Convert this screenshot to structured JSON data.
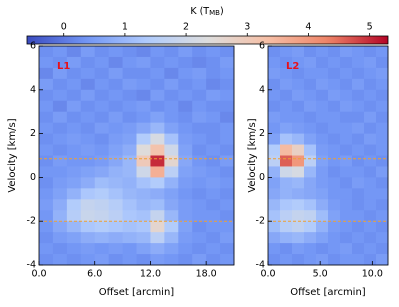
{
  "colorbar": {
    "label_parts": [
      "K (T",
      "MB",
      ")"
    ],
    "clim": [
      -0.6,
      5.3
    ],
    "ticks": [
      0,
      1,
      2,
      3,
      4,
      5
    ],
    "cmap": [
      "#3b4cc0",
      "#7396f5",
      "#b0cbfc",
      "#dddddd",
      "#f6bfa6",
      "#ee8468",
      "#b40426"
    ]
  },
  "chart_data": [
    {
      "type": "heatmap",
      "label": "L1",
      "xlabel": "Offset [arcmin]",
      "ylabel": "Velocity [km/s]",
      "xlim": [
        0,
        21
      ],
      "ylim": [
        -4,
        6
      ],
      "xticks": [
        {
          "value": 0,
          "label": "0.0"
        },
        {
          "value": 6,
          "label": "6.0"
        },
        {
          "value": 12,
          "label": "12.0"
        },
        {
          "value": 18,
          "label": "18.0"
        }
      ],
      "yticks": [
        -4,
        -2,
        0,
        2,
        4,
        6
      ],
      "hlines": [
        0.85,
        -2.0
      ],
      "hline_color": "#f0a030",
      "z": [
        [
          0.3,
          0.4,
          0.2,
          0.5,
          0.3,
          0.4,
          0.3,
          0.2,
          0.4,
          0.3,
          0.5,
          0.3,
          0.4,
          0.3
        ],
        [
          0.4,
          0.3,
          0.5,
          0.3,
          0.4,
          0.2,
          0.4,
          0.5,
          0.3,
          0.4,
          0.3,
          0.2,
          0.3,
          0.5
        ],
        [
          0.2,
          0.5,
          0.3,
          0.4,
          0.3,
          0.5,
          0.3,
          0.3,
          0.4,
          0.2,
          0.4,
          0.5,
          0.3,
          0.4
        ],
        [
          0.5,
          0.3,
          0.4,
          0.2,
          0.4,
          0.3,
          0.5,
          0.4,
          0.3,
          0.5,
          0.3,
          0.4,
          0.2,
          0.3
        ],
        [
          0.3,
          0.4,
          0.3,
          0.5,
          0.3,
          0.4,
          0.3,
          0.2,
          0.5,
          0.3,
          0.4,
          0.3,
          0.5,
          0.4
        ],
        [
          0.4,
          0.2,
          0.5,
          0.3,
          0.4,
          0.3,
          0.4,
          0.5,
          0.3,
          0.4,
          0.2,
          0.4,
          0.3,
          0.3
        ],
        [
          0.3,
          0.5,
          0.3,
          0.4,
          0.3,
          0.5,
          0.3,
          0.4,
          0.6,
          0.4,
          0.3,
          0.5,
          0.4,
          0.2
        ],
        [
          0.4,
          0.3,
          0.4,
          0.3,
          0.5,
          0.4,
          0.5,
          0.7,
          1.0,
          0.6,
          0.4,
          0.3,
          0.3,
          0.4
        ],
        [
          0.3,
          0.4,
          0.5,
          0.4,
          0.3,
          0.5,
          0.6,
          1.4,
          2.2,
          1.2,
          0.5,
          0.4,
          0.3,
          0.4
        ],
        [
          0.4,
          0.3,
          0.4,
          0.5,
          0.4,
          0.6,
          0.8,
          2.4,
          3.2,
          2.0,
          0.6,
          0.3,
          0.4,
          0.3
        ],
        [
          0.3,
          0.5,
          0.4,
          0.4,
          0.5,
          0.7,
          1.0,
          3.0,
          5.0,
          2.6,
          0.7,
          0.4,
          0.3,
          0.5
        ],
        [
          0.4,
          0.4,
          0.5,
          0.6,
          0.7,
          0.9,
          1.0,
          2.0,
          3.6,
          1.6,
          0.6,
          0.5,
          0.4,
          0.3
        ],
        [
          0.3,
          0.5,
          0.6,
          0.8,
          1.1,
          1.0,
          0.9,
          1.2,
          1.4,
          0.9,
          0.5,
          0.4,
          0.5,
          0.4
        ],
        [
          0.4,
          0.6,
          0.9,
          1.3,
          1.4,
          1.2,
          1.0,
          0.9,
          0.8,
          0.6,
          0.4,
          0.3,
          0.4,
          0.3
        ],
        [
          0.5,
          0.8,
          1.4,
          1.8,
          1.7,
          1.5,
          1.2,
          1.0,
          1.1,
          0.7,
          0.5,
          0.4,
          0.3,
          0.4
        ],
        [
          0.4,
          0.9,
          1.5,
          1.9,
          1.8,
          1.6,
          1.3,
          1.2,
          1.8,
          1.0,
          0.5,
          0.4,
          0.4,
          0.3
        ],
        [
          0.4,
          0.7,
          1.0,
          1.3,
          1.4,
          1.3,
          1.2,
          1.3,
          2.6,
          1.4,
          0.6,
          0.3,
          0.4,
          0.4
        ],
        [
          0.3,
          0.5,
          0.6,
          0.8,
          0.9,
          0.8,
          0.9,
          1.0,
          1.6,
          1.0,
          0.5,
          0.4,
          0.3,
          0.5
        ],
        [
          0.4,
          0.3,
          0.4,
          0.5,
          0.4,
          0.5,
          0.4,
          0.6,
          0.8,
          0.6,
          0.4,
          0.3,
          0.4,
          0.3
        ],
        [
          0.3,
          0.4,
          0.3,
          0.4,
          0.5,
          0.3,
          0.4,
          0.3,
          0.5,
          0.4,
          0.3,
          0.5,
          0.3,
          0.4
        ]
      ]
    },
    {
      "type": "heatmap",
      "label": "L2",
      "xlabel": "Offset [arcmin]",
      "ylabel": "Velocity [km/s]",
      "xlim": [
        0,
        11.5
      ],
      "ylim": [
        -4,
        6
      ],
      "xticks": [
        {
          "value": 0,
          "label": "0.0"
        },
        {
          "value": 5,
          "label": "5.0"
        },
        {
          "value": 10,
          "label": "10.0"
        }
      ],
      "yticks": [
        -4,
        -2,
        0,
        2,
        4,
        6
      ],
      "hlines": [
        0.85,
        -2.0
      ],
      "hline_color": "#f0a030",
      "z": [
        [
          0.3,
          0.4,
          0.5,
          0.3,
          0.4,
          0.3,
          0.5,
          0.4,
          0.3,
          0.4
        ],
        [
          0.4,
          0.3,
          0.4,
          0.5,
          0.3,
          0.4,
          0.3,
          0.4,
          0.5,
          0.3
        ],
        [
          0.5,
          0.4,
          0.3,
          0.4,
          0.4,
          0.3,
          0.4,
          0.3,
          0.4,
          0.5
        ],
        [
          0.3,
          0.5,
          0.4,
          0.3,
          0.5,
          0.4,
          0.3,
          0.5,
          0.3,
          0.4
        ],
        [
          0.4,
          0.3,
          0.5,
          0.4,
          0.3,
          0.5,
          0.4,
          0.3,
          0.4,
          0.3
        ],
        [
          0.3,
          0.4,
          0.3,
          0.5,
          0.4,
          0.3,
          0.5,
          0.4,
          0.3,
          0.4
        ],
        [
          0.5,
          0.4,
          0.4,
          0.3,
          0.4,
          0.4,
          0.3,
          0.3,
          0.5,
          0.3
        ],
        [
          0.4,
          0.6,
          0.5,
          0.4,
          0.3,
          0.4,
          0.4,
          0.5,
          0.3,
          0.4
        ],
        [
          0.6,
          1.2,
          1.0,
          0.6,
          0.4,
          0.3,
          0.4,
          0.3,
          0.5,
          0.4
        ],
        [
          1.4,
          3.4,
          2.8,
          1.2,
          0.5,
          0.4,
          0.3,
          0.4,
          0.3,
          0.4
        ],
        [
          1.6,
          4.6,
          4.0,
          1.6,
          0.6,
          0.4,
          0.5,
          0.3,
          0.4,
          0.3
        ],
        [
          0.9,
          2.0,
          2.2,
          1.0,
          0.5,
          0.3,
          0.4,
          0.4,
          0.3,
          0.5
        ],
        [
          0.6,
          0.9,
          1.0,
          0.7,
          0.5,
          0.4,
          0.3,
          0.5,
          0.4,
          0.3
        ],
        [
          0.7,
          0.9,
          0.8,
          0.7,
          0.6,
          0.4,
          0.4,
          0.3,
          0.4,
          0.4
        ],
        [
          1.0,
          1.3,
          1.4,
          1.2,
          0.8,
          0.5,
          0.4,
          0.3,
          0.4,
          0.3
        ],
        [
          1.2,
          1.6,
          1.8,
          1.7,
          1.1,
          0.6,
          0.4,
          0.4,
          0.3,
          0.4
        ],
        [
          1.1,
          1.5,
          1.7,
          1.4,
          0.9,
          0.5,
          0.4,
          0.3,
          0.4,
          0.3
        ],
        [
          0.7,
          0.9,
          1.0,
          0.8,
          0.6,
          0.4,
          0.3,
          0.4,
          0.3,
          0.4
        ],
        [
          0.4,
          0.3,
          0.5,
          0.4,
          0.3,
          0.4,
          0.5,
          0.3,
          0.4,
          0.3
        ],
        [
          0.3,
          0.4,
          0.3,
          0.4,
          0.5,
          0.3,
          0.4,
          0.4,
          0.3,
          0.5
        ]
      ]
    }
  ]
}
